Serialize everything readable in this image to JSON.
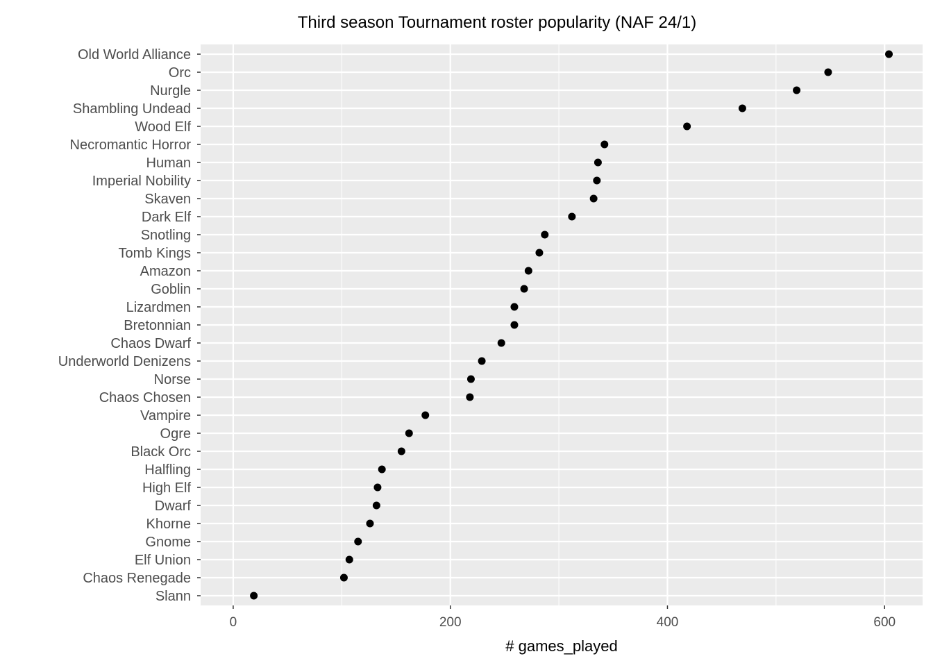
{
  "chart_data": {
    "type": "scatter",
    "title": "Third season Tournament roster popularity (NAF 24/1)",
    "xlabel": "# games_played",
    "ylabel": "",
    "xlim": [
      -30,
      635
    ],
    "xticks": [
      0,
      200,
      400,
      600
    ],
    "grid": true,
    "categories": [
      "Old World Alliance",
      "Orc",
      "Nurgle",
      "Shambling Undead",
      "Wood Elf",
      "Necromantic Horror",
      "Human",
      "Imperial Nobility",
      "Skaven",
      "Dark Elf",
      "Snotling",
      "Tomb Kings",
      "Amazon",
      "Goblin",
      "Lizardmen",
      "Bretonnian",
      "Chaos Dwarf",
      "Underworld Denizens",
      "Norse",
      "Chaos Chosen",
      "Vampire",
      "Ogre",
      "Black Orc",
      "Halfling",
      "High Elf",
      "Dwarf",
      "Khorne",
      "Gnome",
      "Elf Union",
      "Chaos Renegade",
      "Slann"
    ],
    "values": [
      604,
      548,
      519,
      469,
      418,
      342,
      336,
      335,
      332,
      312,
      287,
      282,
      272,
      268,
      259,
      259,
      247,
      229,
      219,
      218,
      177,
      162,
      155,
      137,
      133,
      132,
      126,
      115,
      107,
      102,
      19
    ],
    "colors": {
      "panel": "#EBEBEB",
      "grid": "#FFFFFF",
      "point": "#000000",
      "tick_text": "#4D4D4D"
    }
  }
}
